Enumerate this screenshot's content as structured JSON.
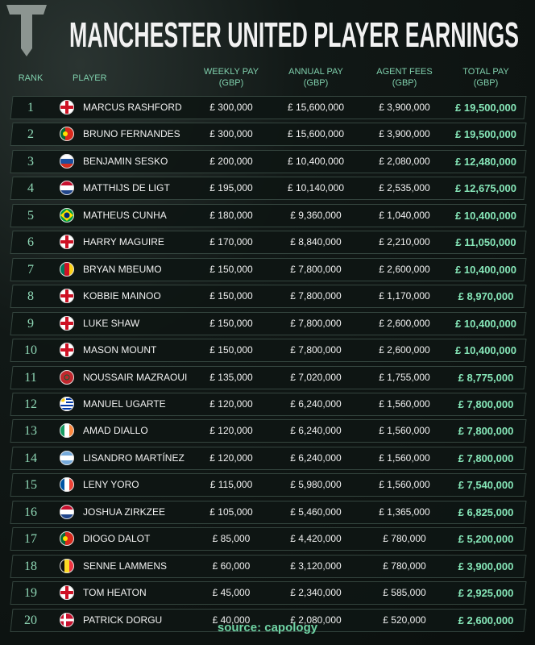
{
  "header": {
    "title": "MANCHESTER UNITED PLAYER EARNINGS"
  },
  "table": {
    "columns": [
      {
        "label": "RANK"
      },
      {
        "label": "PLAYER"
      },
      {
        "label": "WEEKLY PAY",
        "unit": "(GBP)"
      },
      {
        "label": "ANNUAL PAY",
        "unit": "(GBP)"
      },
      {
        "label": "AGENT FEES",
        "unit": "(GBP)"
      },
      {
        "label": "TOTAL PAY",
        "unit": "(GBP)"
      }
    ],
    "rows": [
      [
        1,
        "MARCUS RASHFORD",
        "£ 300,000",
        "£ 15,600,000",
        "£ 3,900,000",
        "£ 19,500,000"
      ],
      [
        2,
        "BRUNO FERNANDES",
        "£ 300,000",
        "£ 15,600,000",
        "£ 3,900,000",
        "£ 19,500,000"
      ],
      [
        3,
        "BENJAMIN SESKO",
        "£ 200,000",
        "£ 10,400,000",
        "£ 2,080,000",
        "£ 12,480,000"
      ],
      [
        4,
        "MATTHIJS DE LIGT",
        "£ 195,000",
        "£ 10,140,000",
        "£ 2,535,000",
        "£ 12,675,000"
      ],
      [
        5,
        "MATHEUS CUNHA",
        "£ 180,000",
        "£ 9,360,000",
        "£ 1,040,000",
        "£ 10,400,000"
      ],
      [
        6,
        "HARRY MAGUIRE",
        "£ 170,000",
        "£ 8,840,000",
        "£ 2,210,000",
        "£ 11,050,000"
      ],
      [
        7,
        "BRYAN MBEUMO",
        "£ 150,000",
        "£ 7,800,000",
        "£ 2,600,000",
        "£ 10,400,000"
      ],
      [
        8,
        "KOBBIE MAINOO",
        "£ 150,000",
        "£ 7,800,000",
        "£ 1,170,000",
        "£ 8,970,000"
      ],
      [
        9,
        "LUKE SHAW",
        "£ 150,000",
        "£ 7,800,000",
        "£ 2,600,000",
        "£ 10,400,000"
      ],
      [
        10,
        "MASON MOUNT",
        "£ 150,000",
        "£ 7,800,000",
        "£ 2,600,000",
        "£ 10,400,000"
      ],
      [
        11,
        "NOUSSAIR MAZRAOUI",
        "£ 135,000",
        "£ 7,020,000",
        "£ 1,755,000",
        "£ 8,775,000"
      ],
      [
        12,
        "MANUEL UGARTE",
        "£ 120,000",
        "£ 6,240,000",
        "£ 1,560,000",
        "£ 7,800,000"
      ],
      [
        13,
        "AMAD DIALLO",
        "£ 120,000",
        "£ 6,240,000",
        "£ 1,560,000",
        "£ 7,800,000"
      ],
      [
        14,
        "LISANDRO MARTÍNEZ",
        "£ 120,000",
        "£ 6,240,000",
        "£ 1,560,000",
        "£ 7,800,000"
      ],
      [
        15,
        "LENY YORO",
        "£ 115,000",
        "£ 5,980,000",
        "£ 1,560,000",
        "£ 7,540,000"
      ],
      [
        16,
        "JOSHUA ZIRKZEE",
        "£ 105,000",
        "£ 5,460,000",
        "£ 1,365,000",
        "£ 6,825,000"
      ],
      [
        17,
        "DIOGO DALOT",
        "£ 85,000",
        "£ 4,420,000",
        "£ 780,000",
        "£ 5,200,000"
      ],
      [
        18,
        "SENNE LAMMENS",
        "£ 60,000",
        "£ 3,120,000",
        "£ 780,000",
        "£ 3,900,000"
      ],
      [
        19,
        "TOM HEATON",
        "£ 45,000",
        "£ 2,340,000",
        "£ 585,000",
        "£ 2,925,000"
      ],
      [
        20,
        "PATRICK DORGU",
        "£ 40,000",
        "£ 2,080,000",
        "£ 520,000",
        "£ 2,600,000"
      ]
    ]
  },
  "footer": {
    "source": "source: capology"
  }
}
